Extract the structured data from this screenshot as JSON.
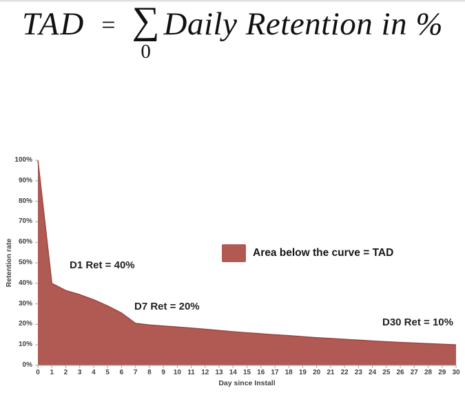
{
  "formula": {
    "lhs": "TAD",
    "equals": "=",
    "sigma": "∑",
    "sigma_lower_bound": "0",
    "rhs": "Daily Retention in %"
  },
  "chart_data": {
    "type": "area",
    "title": "",
    "x": [
      0,
      1,
      2,
      3,
      4,
      5,
      6,
      7,
      8,
      9,
      10,
      11,
      12,
      13,
      14,
      15,
      16,
      17,
      18,
      19,
      20,
      21,
      22,
      23,
      24,
      25,
      26,
      27,
      28,
      29,
      30
    ],
    "values": [
      100,
      40,
      36.5,
      34.5,
      32,
      29,
      25.5,
      20.5,
      19.7,
      19.2,
      18.7,
      18.2,
      17.6,
      17.0,
      16.4,
      15.9,
      15.4,
      14.9,
      14.5,
      14.0,
      13.5,
      13.1,
      12.7,
      12.3,
      11.9,
      11.5,
      11.2,
      10.9,
      10.6,
      10.3,
      10
    ],
    "series_name": "Daily retention in %",
    "xlabel": "Day since Install",
    "ylabel": "Retention rate",
    "xlim": [
      0,
      30
    ],
    "ylim": [
      0,
      100
    ],
    "grid": false,
    "x_tick_labels": [
      "0",
      "1",
      "2",
      "3",
      "4",
      "5",
      "6",
      "7",
      "8",
      "9",
      "10",
      "11",
      "12",
      "13",
      "14",
      "15",
      "16",
      "17",
      "18",
      "19",
      "20",
      "21",
      "22",
      "23",
      "24",
      "25",
      "26",
      "27",
      "28",
      "29",
      "30"
    ],
    "y_tick_labels": [
      "0%",
      "10%",
      "20%",
      "30%",
      "40%",
      "50%",
      "60%",
      "70%",
      "80%",
      "90%",
      "100%"
    ],
    "legend": {
      "label": "Area below the curve = TAD",
      "position": "center"
    },
    "annotations": [
      {
        "label": "D1 Ret = 40%",
        "day": 1,
        "value_pct": 40
      },
      {
        "label": "D7 Ret = 20%",
        "day": 7,
        "value_pct": 20
      },
      {
        "label": "D30 Ret = 10%",
        "day": 30,
        "value_pct": 10
      }
    ],
    "colors": {
      "area_fill": "#b05a53",
      "area_edge": "#9a4a43",
      "axis": "#a6a6a6",
      "tick_text": "#404040",
      "annotation_text": "#1f1f1f"
    }
  }
}
